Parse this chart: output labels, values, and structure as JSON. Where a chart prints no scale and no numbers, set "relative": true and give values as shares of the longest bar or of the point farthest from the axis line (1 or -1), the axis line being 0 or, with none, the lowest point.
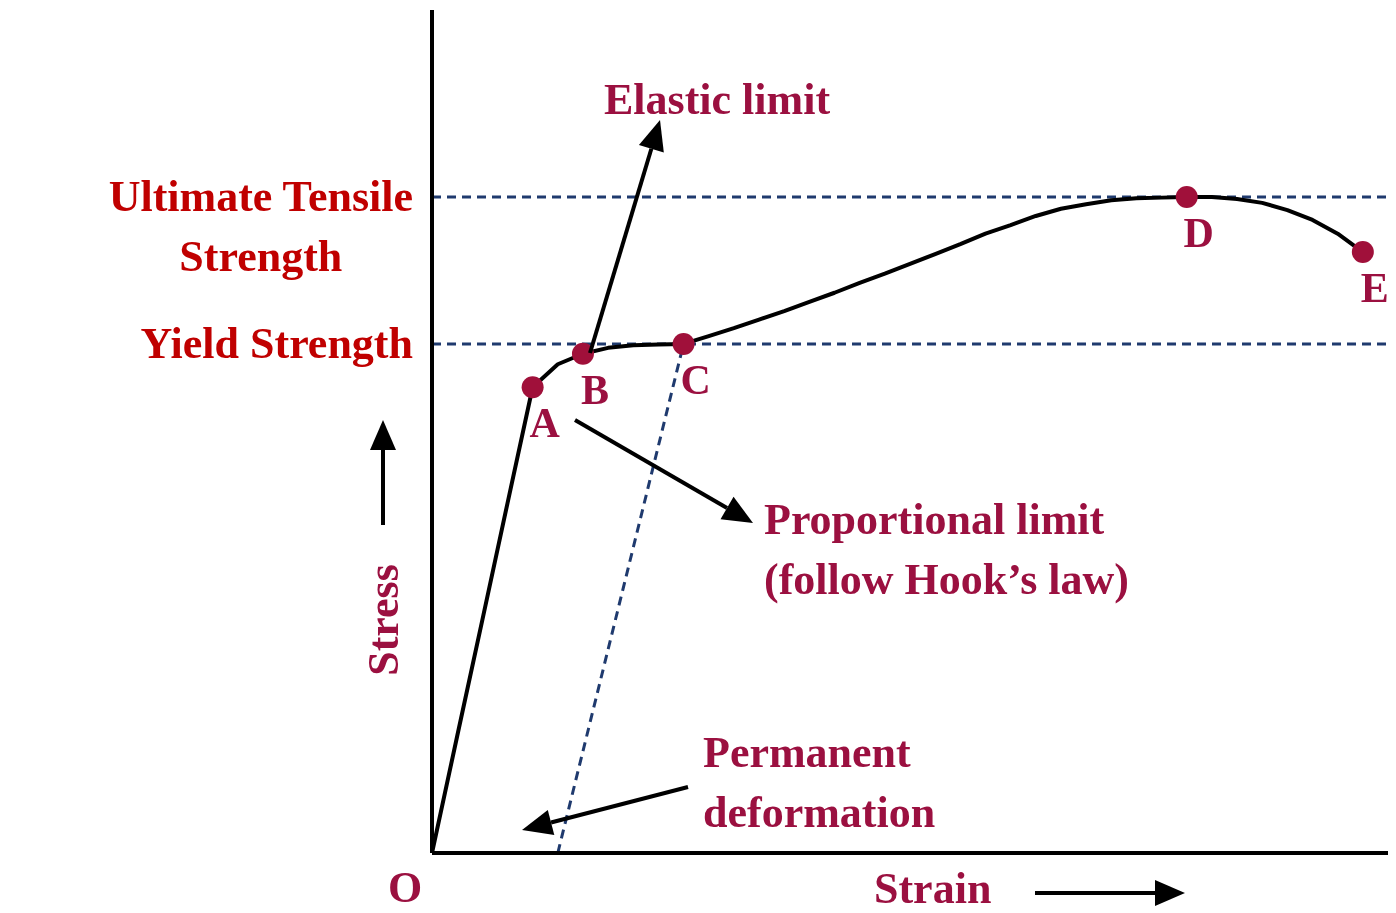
{
  "chart_data": {
    "type": "line",
    "relative": true,
    "xlabel": "Strain",
    "ylabel": "Stress",
    "legend": false,
    "grid": false,
    "categories": [
      null,
      null,
      null,
      null,
      null,
      null,
      null,
      null,
      null,
      null,
      null,
      null,
      null,
      null,
      null,
      null,
      null,
      null,
      null,
      null,
      null,
      null,
      null,
      null,
      null,
      null,
      null,
      null,
      null,
      null,
      null,
      null,
      null,
      null,
      null,
      null,
      null,
      null
    ],
    "series": [
      {
        "color": "#000000",
        "values": [
          0,
          0.178,
          0.355,
          0.533,
          0.71,
          0.745,
          0.761,
          0.77,
          0.774,
          0.775,
          0.776,
          0.788,
          0.8,
          0.813,
          0.826,
          0.84,
          0.854,
          0.869,
          0.883,
          0.898,
          0.913,
          0.928,
          0.944,
          0.957,
          0.971,
          0.982,
          0.989,
          0.995,
          0.998,
          0.999,
          1,
          1,
          0.997,
          0.991,
          0.98,
          0.965,
          0.944,
          0.916
        ]
      },
      {
        "color": "#1f3a6e",
        "line_style": "dashed",
        "values": [
          null,
          null,
          null,
          null,
          null,
          0,
          null,
          null,
          null,
          null,
          0.776,
          null,
          null,
          null,
          null,
          null,
          null,
          null,
          null,
          null,
          null,
          null,
          null,
          null,
          null,
          null,
          null,
          null,
          null,
          null,
          null,
          null,
          null,
          null,
          null,
          null,
          null,
          null
        ]
      }
    ],
    "ref_lines": [
      {
        "axis": "y",
        "value": 1,
        "label": "Ultimate Tensile\nStrength",
        "color": "#1f3a6e",
        "line_style": "dashed"
      },
      {
        "axis": "y",
        "value": 0.776,
        "label": "Yield Strength",
        "color": "#1f3a6e",
        "line_style": "dashed"
      }
    ],
    "annotations": [
      "Elastic limit",
      "Proportional limit\n(follow Hook’s law)",
      "Permanent\ndeformation",
      "O",
      {
        "text": "A",
        "y": 0.71
      },
      {
        "text": "B",
        "y": 0.761
      },
      {
        "text": "C",
        "y": 0.776
      },
      {
        "text": "D",
        "y": 1
      },
      {
        "text": "E",
        "y": 0.916
      }
    ]
  }
}
